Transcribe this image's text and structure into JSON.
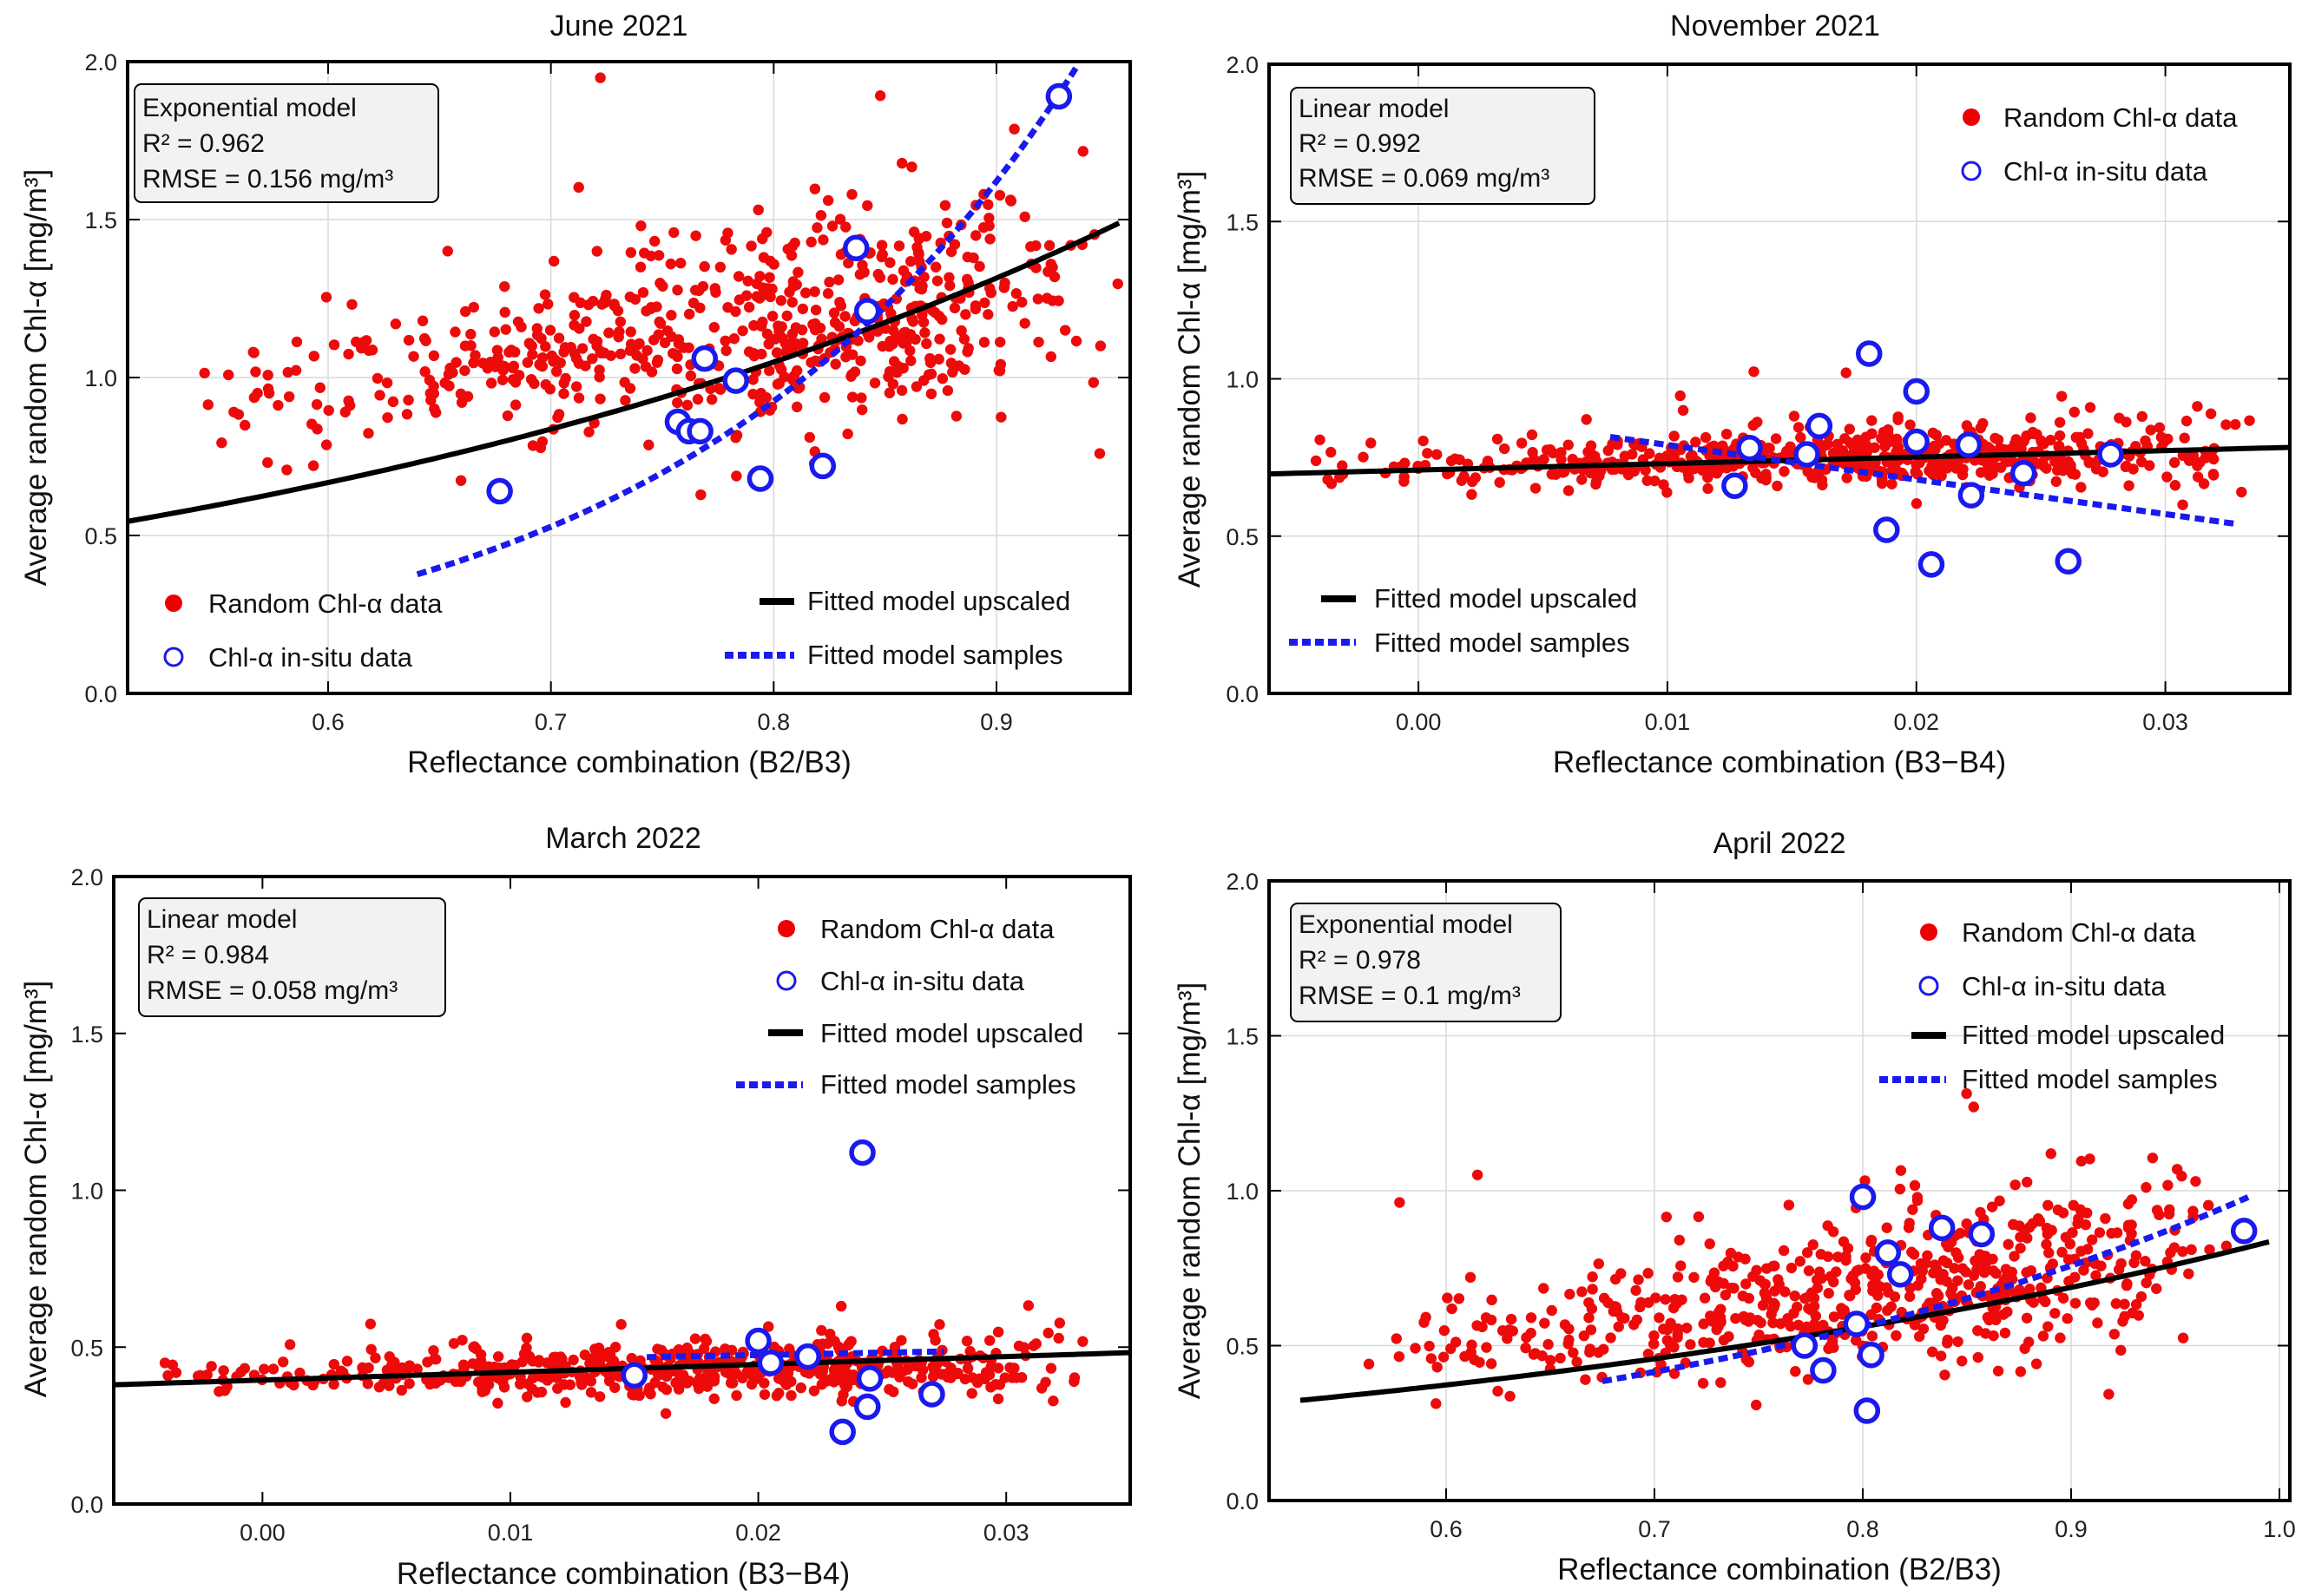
{
  "chart_data": [
    {
      "type": "scatter",
      "title": "June 2021",
      "xlabel": "Reflectance combination (B2/B3)",
      "ylabel": "Average random Chl-α [mg/m³]",
      "xlim": [
        0.51,
        0.96
      ],
      "ylim": [
        0.0,
        2.0
      ],
      "xticks": [
        0.6,
        0.7,
        0.8,
        0.9
      ],
      "xtick_labels": [
        "0.6",
        "0.7",
        "0.8",
        "0.9"
      ],
      "yticks": [
        0.0,
        0.5,
        1.0,
        1.5,
        2.0
      ],
      "ytick_labels": [
        "0.0",
        "0.5",
        "1.0",
        "1.5",
        "2.0"
      ],
      "grid": true,
      "stats": {
        "model": "Exponential model",
        "r2": "R² =  0.962",
        "rmse": "RMSE =  0.156 mg/m³"
      },
      "legend": {
        "placement": "bottom",
        "random": "Random Chl-α data",
        "insitu": "Chl-α in-situ data",
        "upscaled": "Fitted model upscaled",
        "samples": "Fitted model samples"
      },
      "random_cloud": {
        "count": 640,
        "x_mode": 0.86,
        "x_min": 0.53,
        "x_max": 0.955,
        "y_at_xmin": 0.9,
        "y_at_xmax": 1.3,
        "y_spread": 0.14
      },
      "insitu_points": [
        [
          0.677,
          0.64
        ],
        [
          0.757,
          0.86
        ],
        [
          0.762,
          0.83
        ],
        [
          0.767,
          0.83
        ],
        [
          0.769,
          1.06
        ],
        [
          0.783,
          0.99
        ],
        [
          0.794,
          0.68
        ],
        [
          0.822,
          0.72
        ],
        [
          0.837,
          1.41
        ],
        [
          0.842,
          1.21
        ],
        [
          0.928,
          1.89
        ]
      ],
      "fit_upscaled": {
        "kind": "exponential",
        "a": 0.172,
        "b": 2.26,
        "x_range": [
          0.51,
          0.955
        ]
      },
      "fit_samples": {
        "kind": "exponential",
        "a": 0.0104,
        "b": 5.61,
        "x_range": [
          0.64,
          0.94
        ]
      }
    },
    {
      "type": "scatter",
      "title": "November 2021",
      "xlabel": "Reflectance combination (B3−B4)",
      "ylabel": "Average random Chl-α [mg/m³]",
      "xlim": [
        -0.006,
        0.035
      ],
      "ylim": [
        0.0,
        2.0
      ],
      "xticks": [
        0.0,
        0.01,
        0.02,
        0.03
      ],
      "xtick_labels": [
        "0.00",
        "0.01",
        "0.02",
        "0.03"
      ],
      "yticks": [
        0.0,
        0.5,
        1.0,
        1.5,
        2.0
      ],
      "ytick_labels": [
        "0.0",
        "0.5",
        "1.0",
        "1.5",
        "2.0"
      ],
      "grid": true,
      "stats": {
        "model": "Linear model",
        "r2": "R² =  0.992",
        "rmse": "RMSE =  0.069 mg/m³"
      },
      "legend": {
        "placement": "top-right / bottom-left",
        "random": "Random Chl-α data",
        "insitu": "Chl-α in-situ data",
        "upscaled": "Fitted model upscaled",
        "samples": "Fitted model samples"
      },
      "random_cloud": {
        "count": 600,
        "x_mode": 0.02,
        "x_min": -0.005,
        "x_max": 0.0345,
        "y_at_xmin": 0.71,
        "y_at_xmax": 0.78,
        "y_spread": 0.045
      },
      "insitu_points": [
        [
          0.0127,
          0.66
        ],
        [
          0.0133,
          0.78
        ],
        [
          0.0156,
          0.76
        ],
        [
          0.0161,
          0.85
        ],
        [
          0.0181,
          1.08
        ],
        [
          0.0188,
          0.52
        ],
        [
          0.02,
          0.96
        ],
        [
          0.02,
          0.8
        ],
        [
          0.0206,
          0.41
        ],
        [
          0.0221,
          0.79
        ],
        [
          0.0222,
          0.63
        ],
        [
          0.0243,
          0.7
        ],
        [
          0.0261,
          0.42
        ],
        [
          0.0278,
          0.76
        ]
      ],
      "fit_upscaled": {
        "kind": "linear",
        "a": 0.71,
        "b": 2.06,
        "x_range": [
          -0.006,
          0.035
        ]
      },
      "fit_samples": {
        "kind": "linear",
        "a": 0.9,
        "b": -11.0,
        "x_range": [
          0.0077,
          0.0328
        ]
      }
    },
    {
      "type": "scatter",
      "title": "March 2022",
      "xlabel": "Reflectance combination (B3−B4)",
      "ylabel": "Average random Chl-α [mg/m³]",
      "xlim": [
        -0.006,
        0.035
      ],
      "ylim": [
        0.0,
        2.0
      ],
      "xticks": [
        0.0,
        0.01,
        0.02,
        0.03
      ],
      "xtick_labels": [
        "0.00",
        "0.01",
        "0.02",
        "0.03"
      ],
      "yticks": [
        0.0,
        0.5,
        1.0,
        1.5,
        2.0
      ],
      "ytick_labels": [
        "0.0",
        "0.5",
        "1.0",
        "1.5",
        "2.0"
      ],
      "grid": false,
      "stats": {
        "model": "Linear model",
        "r2": "R² =  0.984",
        "rmse": "RMSE =  0.058 mg/m³"
      },
      "legend": {
        "placement": "top-right",
        "random": "Random Chl-α data",
        "insitu": "Chl-α in-situ data",
        "upscaled": "Fitted model upscaled",
        "samples": "Fitted model samples"
      },
      "random_cloud": {
        "count": 560,
        "x_mode": 0.022,
        "x_min": -0.005,
        "x_max": 0.0345,
        "y_at_xmin": 0.4,
        "y_at_xmax": 0.45,
        "y_spread": 0.04
      },
      "insitu_points": [
        [
          0.015,
          0.41
        ],
        [
          0.02,
          0.52
        ],
        [
          0.0205,
          0.45
        ],
        [
          0.022,
          0.47
        ],
        [
          0.0234,
          0.23
        ],
        [
          0.0242,
          1.12
        ],
        [
          0.0244,
          0.31
        ],
        [
          0.0245,
          0.4
        ],
        [
          0.027,
          0.35
        ]
      ],
      "fit_upscaled": {
        "kind": "linear",
        "a": 0.395,
        "b": 2.5,
        "x_range": [
          -0.006,
          0.035
        ]
      },
      "fit_samples": {
        "kind": "linear",
        "a": 0.445,
        "b": 1.5,
        "x_range": [
          0.0155,
          0.0275
        ]
      }
    },
    {
      "type": "scatter",
      "title": "April 2022",
      "xlabel": "Reflectance combination (B2/B3)",
      "ylabel": "Average random Chl-α [mg/m³]",
      "xlim": [
        0.515,
        1.005
      ],
      "ylim": [
        0.0,
        2.0
      ],
      "xticks": [
        0.6,
        0.7,
        0.8,
        0.9,
        1.0
      ],
      "xtick_labels": [
        "0.6",
        "0.7",
        "0.8",
        "0.9",
        "1.0"
      ],
      "yticks": [
        0.0,
        0.5,
        1.0,
        1.5,
        2.0
      ],
      "ytick_labels": [
        "0.0",
        "0.5",
        "1.0",
        "1.5",
        "2.0"
      ],
      "grid": true,
      "stats": {
        "model": "Exponential model",
        "r2": "R² =  0.978",
        "rmse": "RMSE =  0.1 mg/m³"
      },
      "legend": {
        "placement": "top-right",
        "random": "Random Chl-α data",
        "insitu": "Chl-α in-situ data",
        "upscaled": "Fitted model upscaled",
        "samples": "Fitted model samples"
      },
      "random_cloud": {
        "count": 600,
        "x_mode": 0.86,
        "x_min": 0.53,
        "x_max": 0.99,
        "y_at_xmin": 0.44,
        "y_at_xmax": 0.83,
        "y_spread": 0.11
      },
      "insitu_points": [
        [
          0.772,
          0.5
        ],
        [
          0.781,
          0.42
        ],
        [
          0.797,
          0.57
        ],
        [
          0.8,
          0.98
        ],
        [
          0.802,
          0.29
        ],
        [
          0.804,
          0.47
        ],
        [
          0.812,
          0.8
        ],
        [
          0.818,
          0.73
        ],
        [
          0.838,
          0.88
        ],
        [
          0.857,
          0.86
        ],
        [
          0.983,
          0.87
        ]
      ],
      "fit_upscaled": {
        "kind": "exponential",
        "a": 0.1097,
        "b": 2.04,
        "x_range": [
          0.53,
          0.995
        ]
      },
      "fit_samples": {
        "kind": "exponential",
        "a": 0.0505,
        "b": 3.01,
        "x_range": [
          0.675,
          0.985
        ]
      }
    }
  ]
}
